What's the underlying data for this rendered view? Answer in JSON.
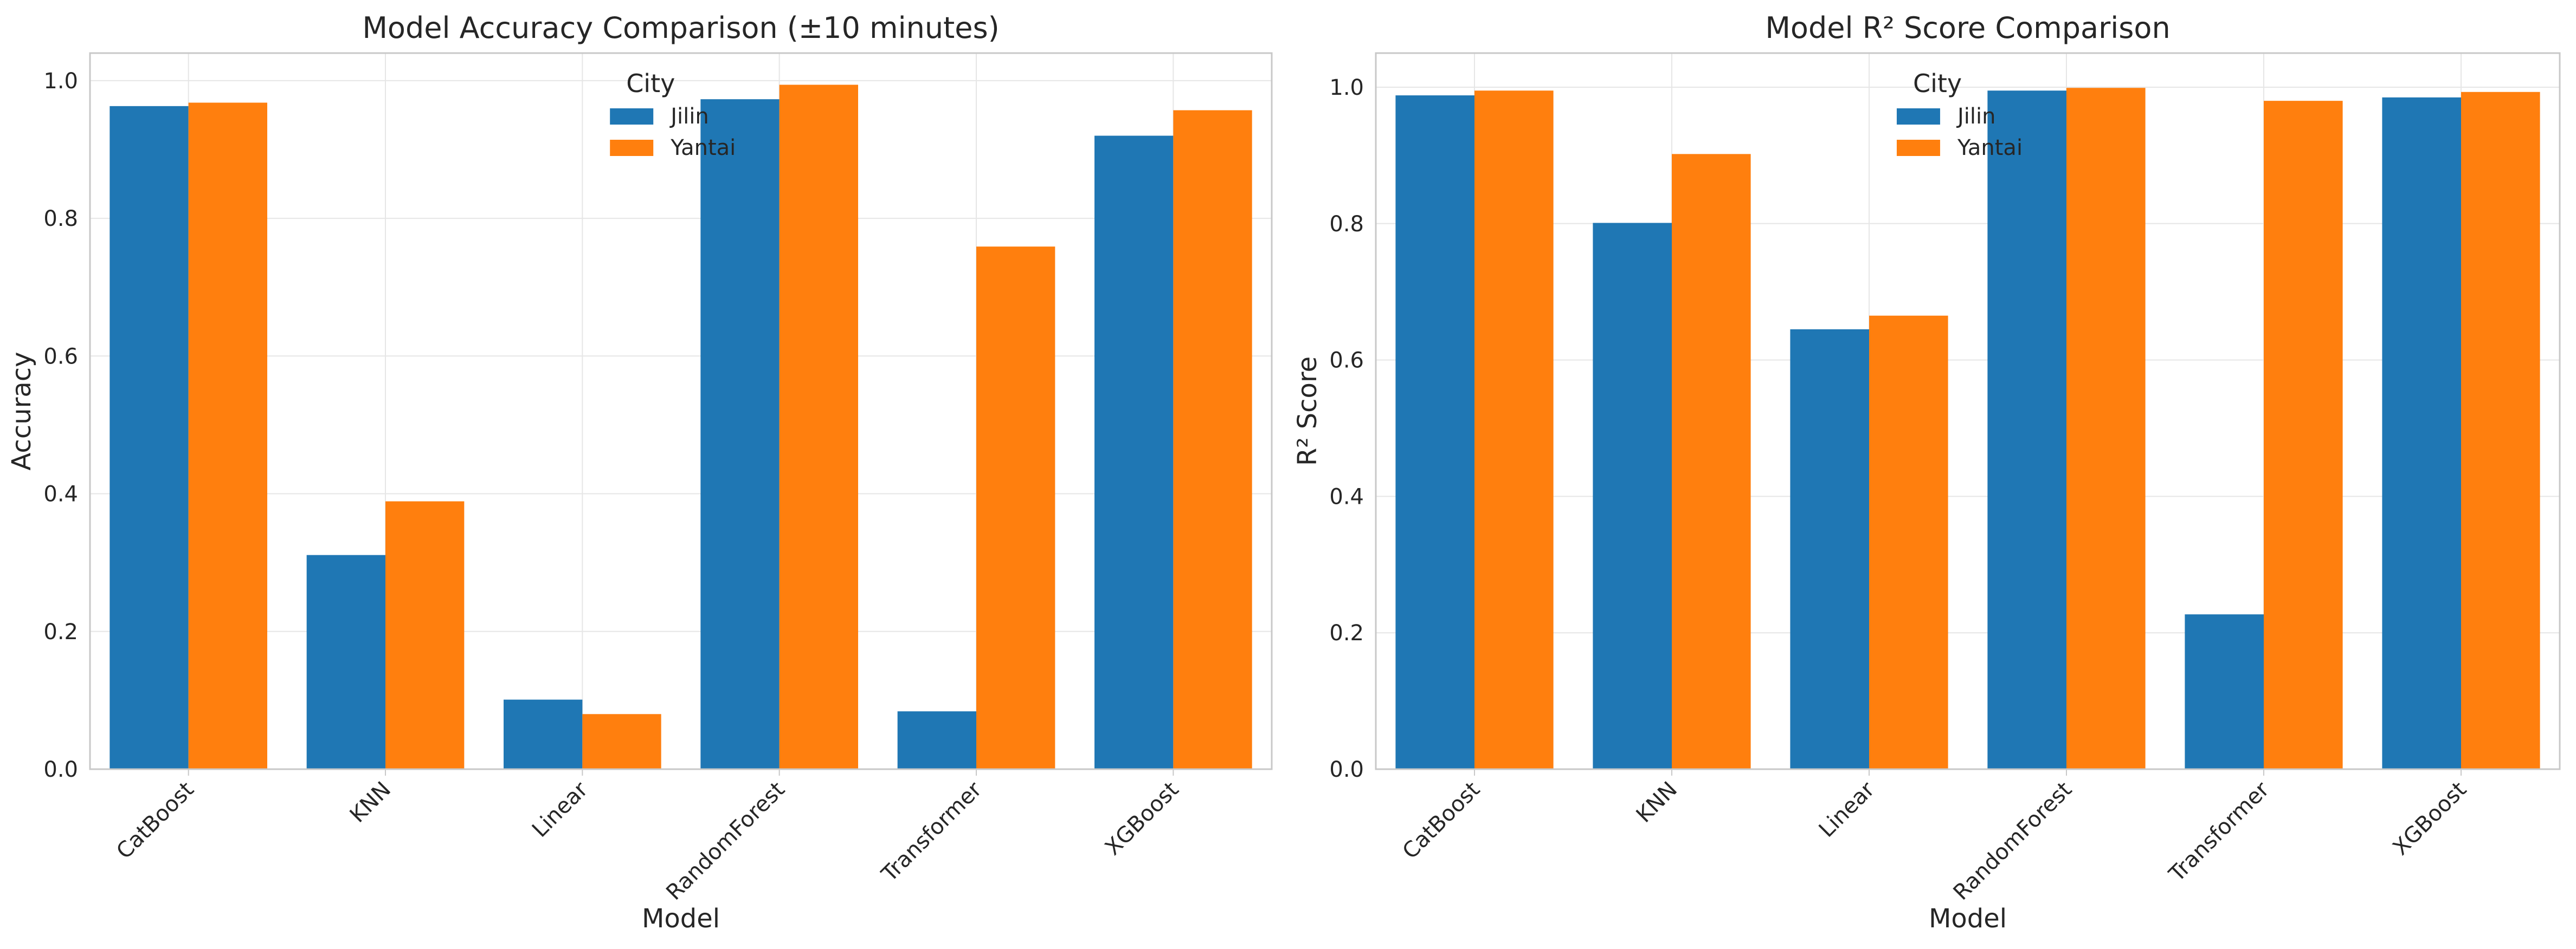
{
  "colors": {
    "Jilin": "#1f77b4",
    "Yantai": "#ff7f0e"
  },
  "chart_data": [
    {
      "type": "bar",
      "title": "Model Accuracy Comparison (±10 minutes)",
      "xlabel": "Model",
      "ylabel": "Accuracy",
      "categories": [
        "CatBoost",
        "KNN",
        "Linear",
        "RandomForest",
        "Transformer",
        "XGBoost"
      ],
      "series": [
        {
          "name": "Jilin",
          "values": [
            0.963,
            0.311,
            0.101,
            0.973,
            0.084,
            0.92
          ]
        },
        {
          "name": "Yantai",
          "values": [
            0.968,
            0.389,
            0.08,
            0.994,
            0.759,
            0.957
          ]
        }
      ],
      "ylim": [
        0,
        1.04
      ],
      "yticks": [
        0.0,
        0.2,
        0.4,
        0.6,
        0.8,
        1.0
      ],
      "ytick_labels": [
        "0.0",
        "0.2",
        "0.4",
        "0.6",
        "0.8",
        "1.0"
      ],
      "legend": {
        "title": "City",
        "placement": "top-center"
      },
      "grid": true
    },
    {
      "type": "bar",
      "title": "Model R² Score Comparison",
      "xlabel": "Model",
      "ylabel": "R² Score",
      "categories": [
        "CatBoost",
        "KNN",
        "Linear",
        "RandomForest",
        "Transformer",
        "XGBoost"
      ],
      "series": [
        {
          "name": "Jilin",
          "values": [
            0.988,
            0.801,
            0.645,
            0.995,
            0.227,
            0.985
          ]
        },
        {
          "name": "Yantai",
          "values": [
            0.995,
            0.902,
            0.665,
            0.999,
            0.98,
            0.993
          ]
        }
      ],
      "ylim": [
        0,
        1.05
      ],
      "yticks": [
        0.0,
        0.2,
        0.4,
        0.6,
        0.8,
        1.0
      ],
      "ytick_labels": [
        "0.0",
        "0.2",
        "0.4",
        "0.6",
        "0.8",
        "1.0"
      ],
      "legend": {
        "title": "City",
        "placement": "top-center"
      },
      "grid": true
    }
  ]
}
